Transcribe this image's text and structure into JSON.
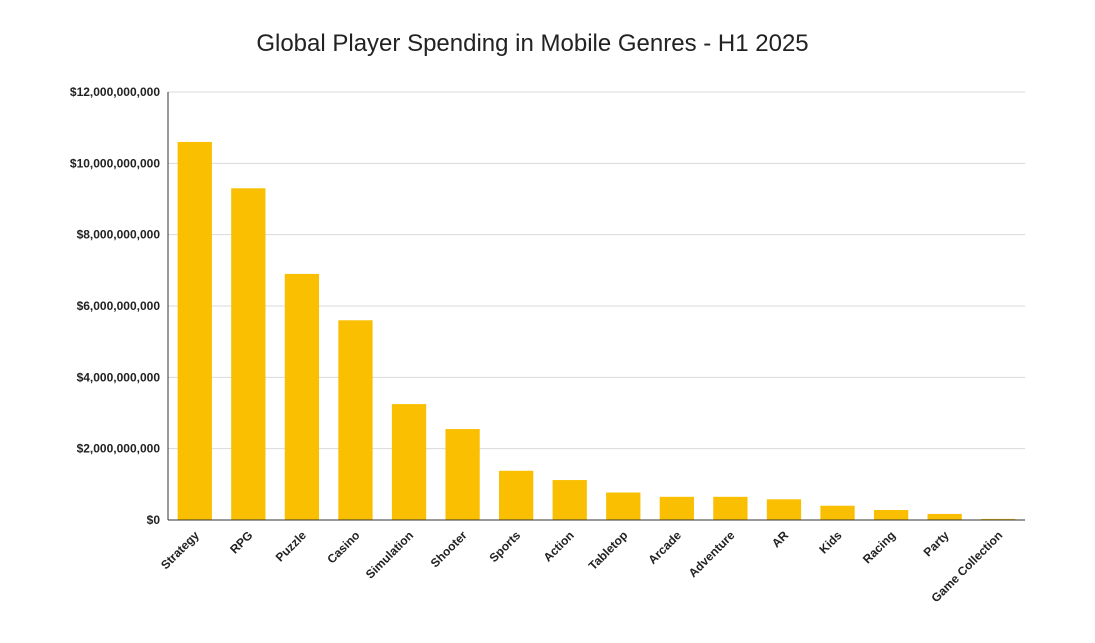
{
  "chart_data": {
    "type": "bar",
    "title": "Global Player Spending in Mobile Genres - H1 2025",
    "xlabel": "",
    "ylabel": "",
    "ylim": [
      0,
      12000000000
    ],
    "yticks": [
      "$0",
      "$2,000,000,000",
      "$4,000,000,000",
      "$6,000,000,000",
      "$8,000,000,000",
      "$10,000,000,000",
      "$12,000,000,000"
    ],
    "grid": true,
    "legend": "none",
    "bar_color": "#f9bf00",
    "categories": [
      "Strategy",
      "RPG",
      "Puzzle",
      "Casino",
      "Simulation",
      "Shooter",
      "Sports",
      "Action",
      "Tabletop",
      "Arcade",
      "Adventure",
      "AR",
      "Kids",
      "Racing",
      "Party",
      "Game Collection"
    ],
    "values": [
      10600000000,
      9300000000,
      6900000000,
      5600000000,
      3250000000,
      2550000000,
      1380000000,
      1120000000,
      770000000,
      650000000,
      650000000,
      580000000,
      400000000,
      280000000,
      170000000,
      30000000
    ]
  }
}
